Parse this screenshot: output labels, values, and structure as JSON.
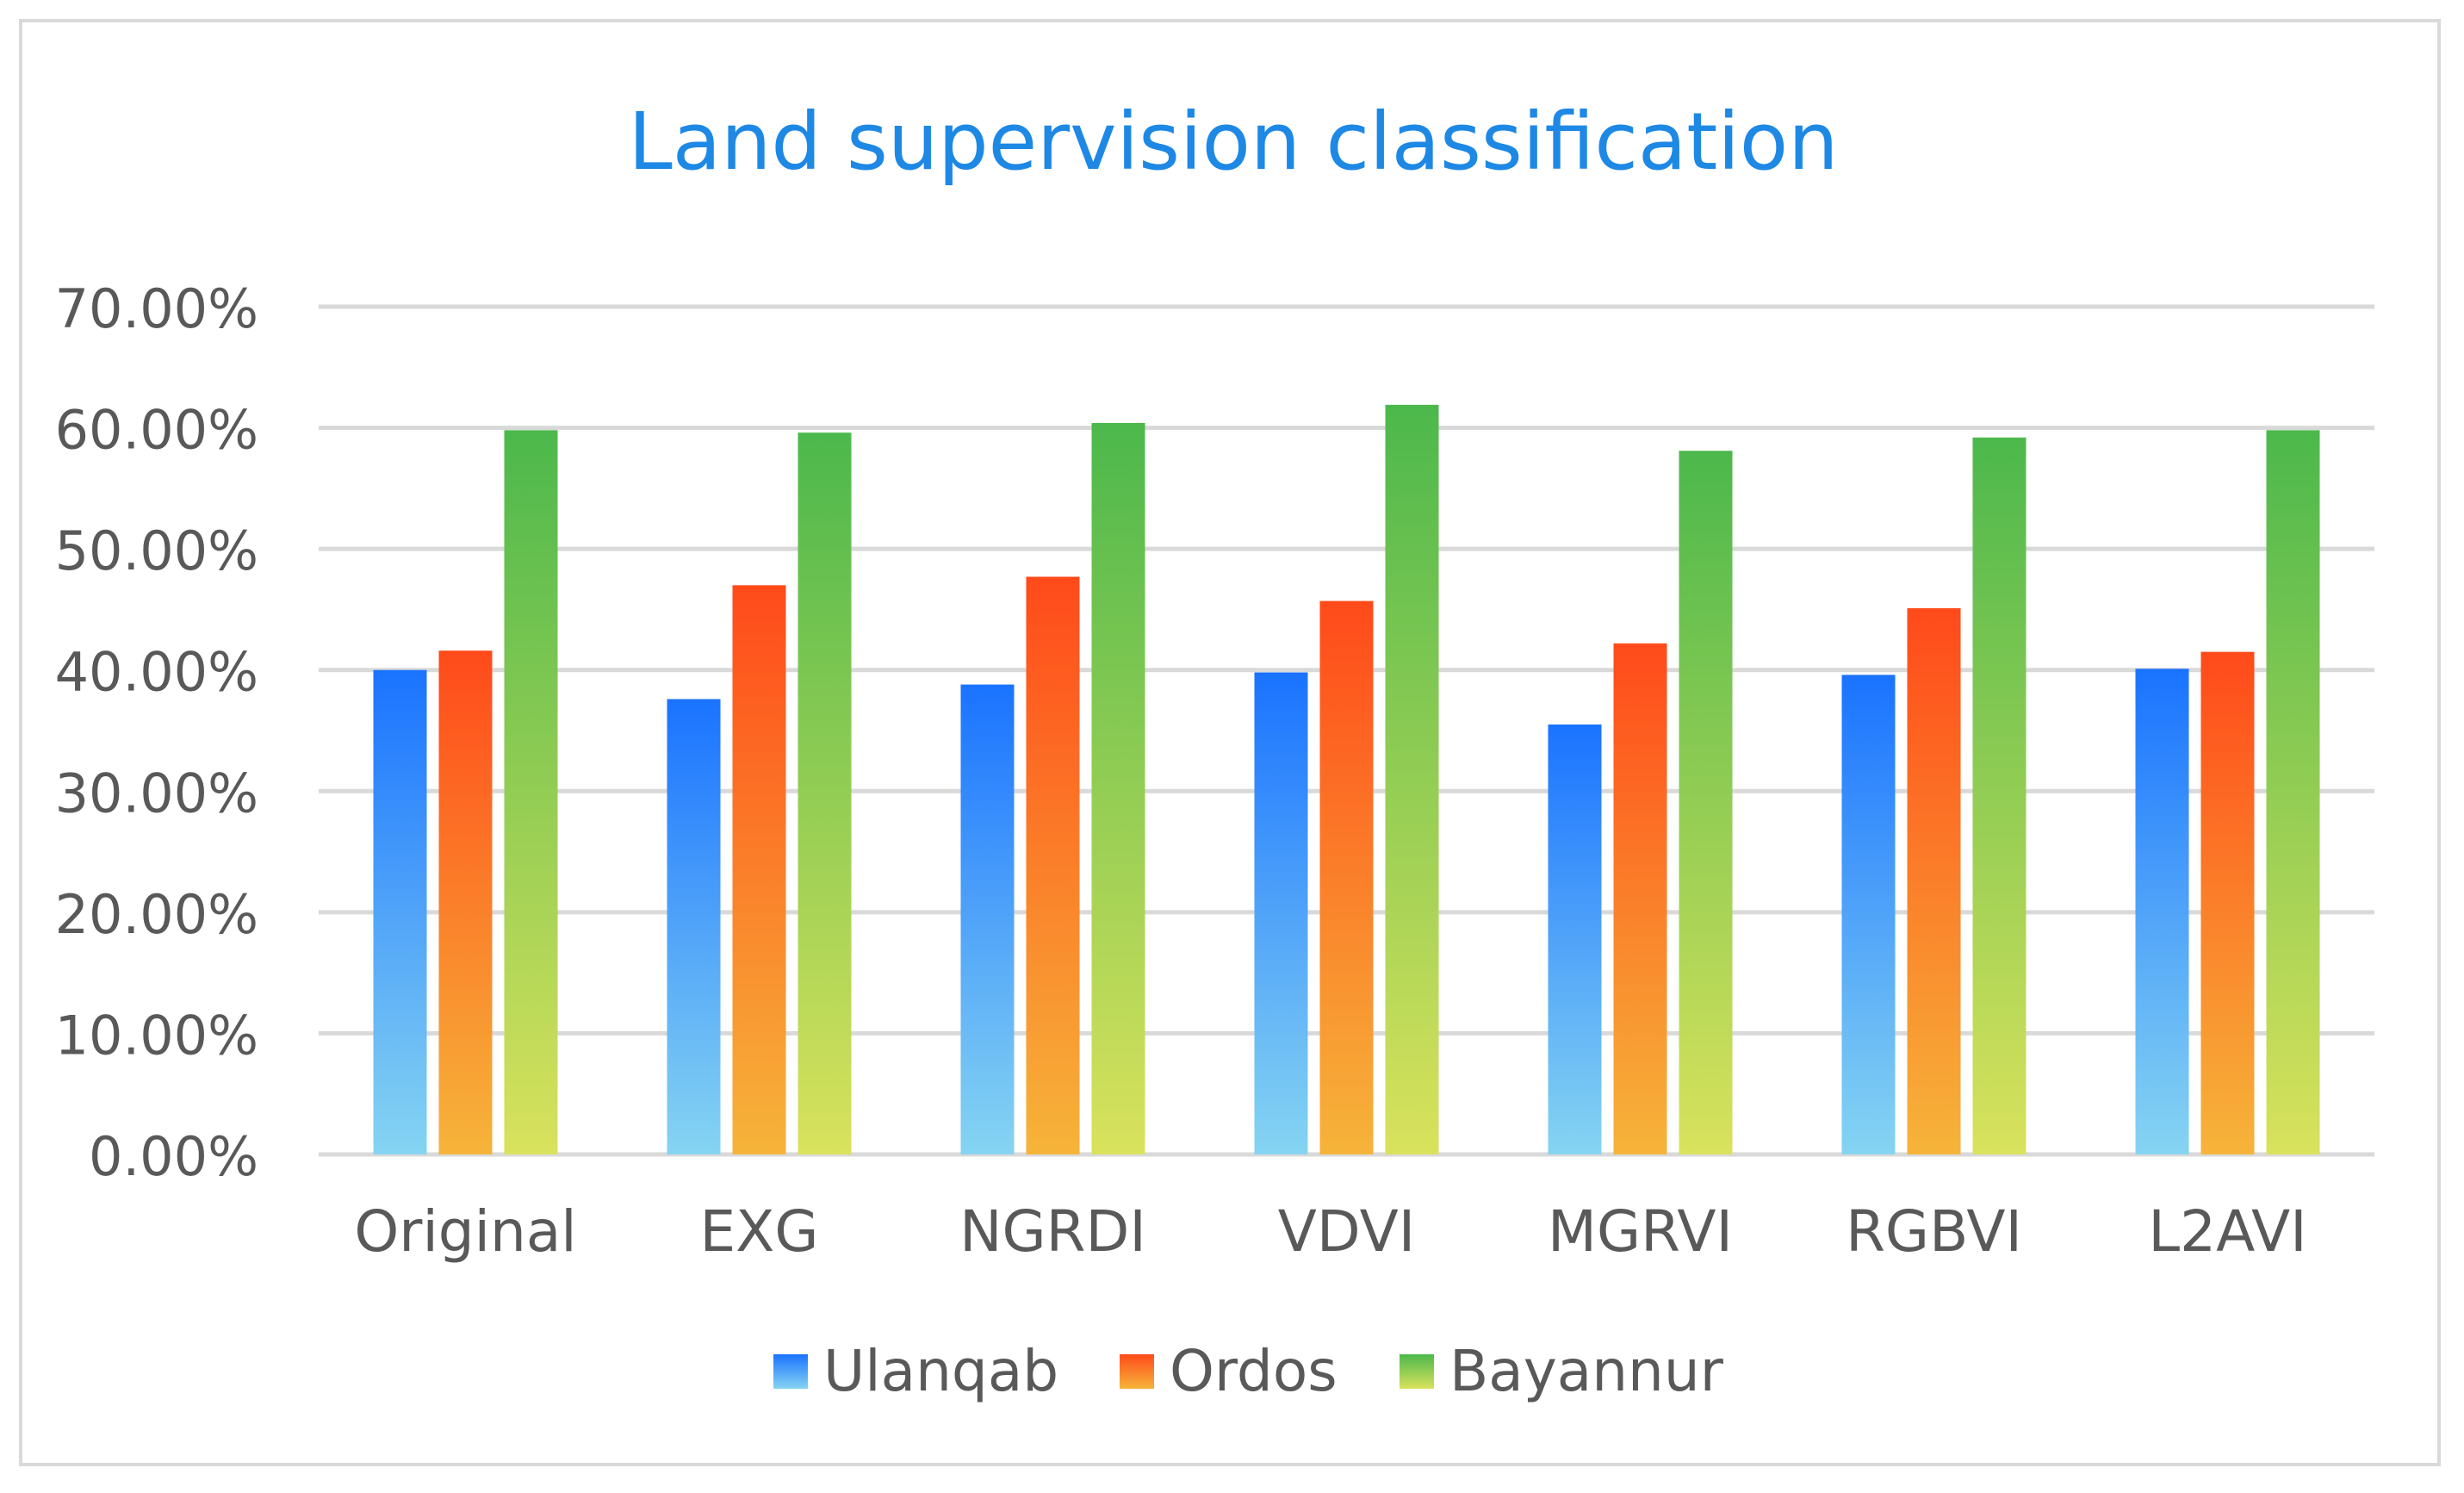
{
  "chart_data": {
    "type": "bar",
    "title": "Land supervision classification",
    "xlabel": "",
    "ylabel": "",
    "categories": [
      "Original",
      "EXG",
      "NGRDI",
      "VDVI",
      "MGRVI",
      "RGBVI",
      "L2AVI"
    ],
    "series": [
      {
        "name": "Ulanqab",
        "values": [
          40.0,
          37.6,
          38.8,
          39.8,
          35.5,
          39.6,
          40.1
        ]
      },
      {
        "name": "Ordos",
        "values": [
          41.6,
          47.0,
          47.7,
          45.7,
          42.2,
          45.1,
          41.5
        ]
      },
      {
        "name": "Bayannur",
        "values": [
          59.8,
          59.6,
          60.4,
          61.9,
          58.1,
          59.2,
          59.8
        ]
      }
    ],
    "ylim": [
      0,
      70
    ],
    "yticks": [
      "0.00%",
      "10.00%",
      "20.00%",
      "30.00%",
      "40.00%",
      "50.00%",
      "60.00%",
      "70.00%"
    ],
    "grid": true,
    "legend_position": "bottom",
    "colors": {
      "title": "#1e88e5",
      "axis_text": "#595959",
      "gridline": "#d9d9d9",
      "Ulanqab": [
        "#1a73ff",
        "#86d4f2"
      ],
      "Ordos": [
        "#ff4a1a",
        "#f6b43a"
      ],
      "Bayannur": [
        "#4cb84c",
        "#d9e25c"
      ]
    }
  }
}
